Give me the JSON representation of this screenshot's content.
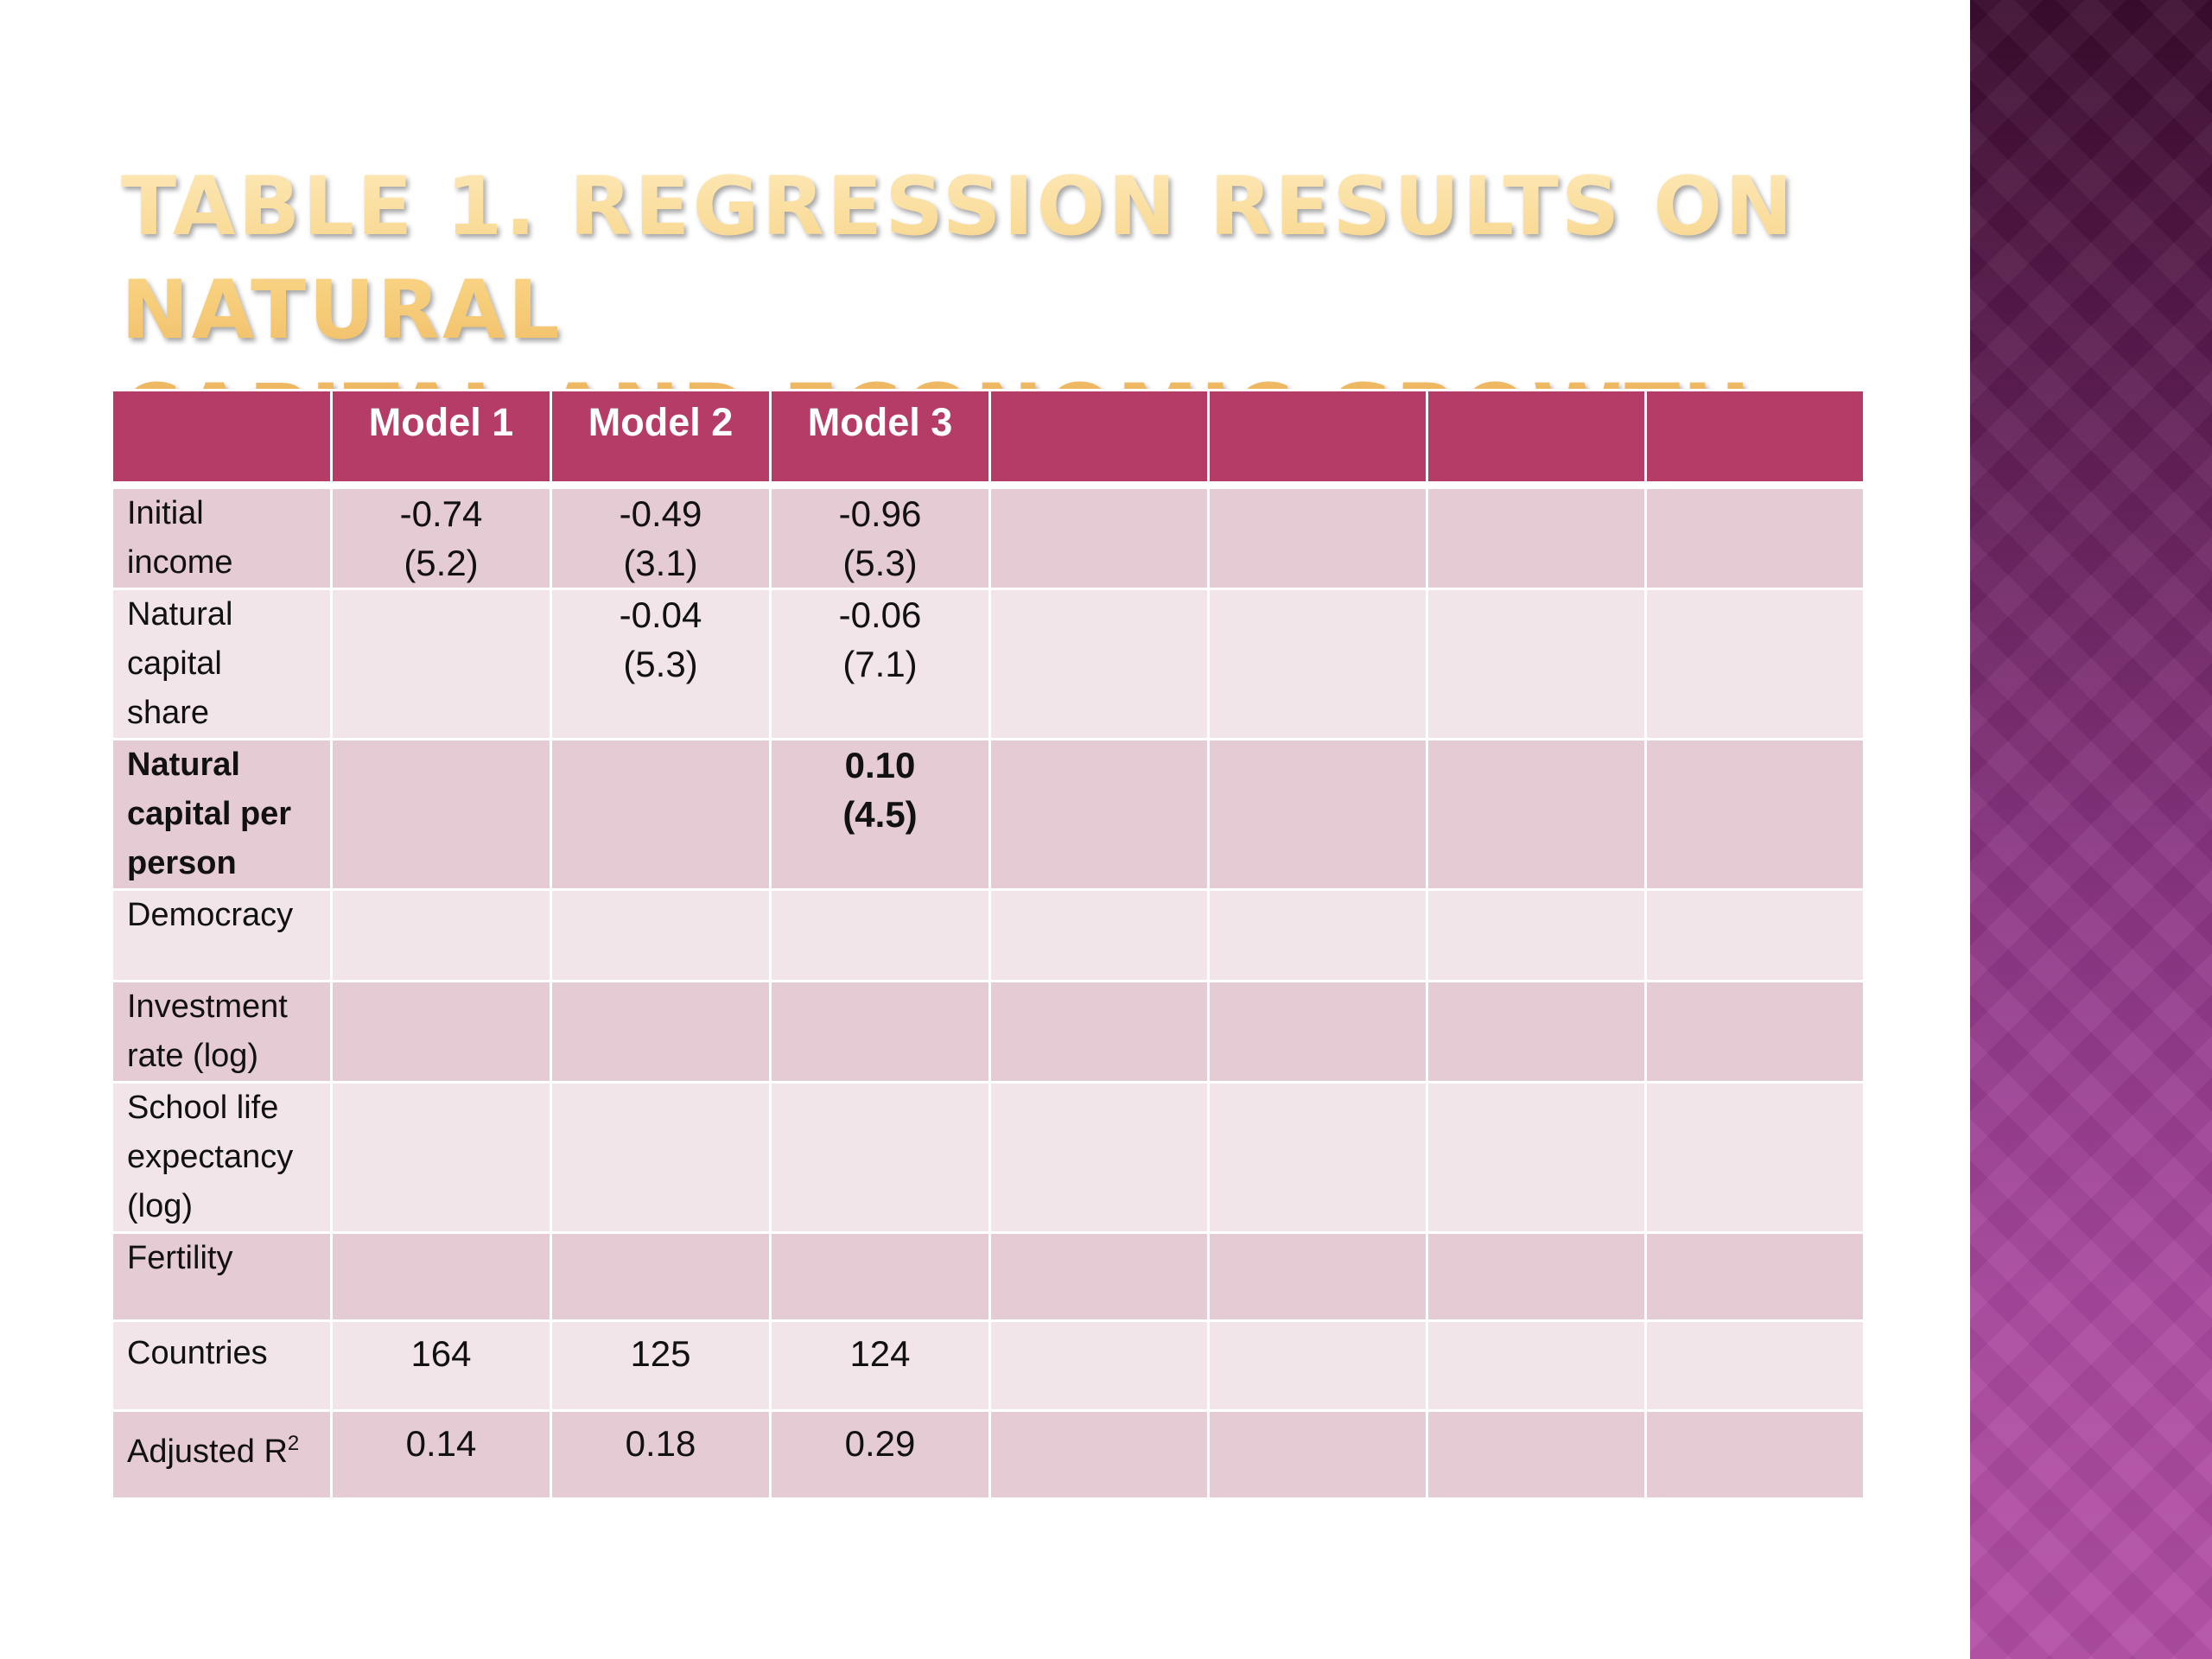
{
  "slide": {
    "title_line1": "Table 1. Regression results on natural",
    "title_line2": "capital and economic growth"
  },
  "table": {
    "headers": [
      "",
      "Model 1",
      "Model 2",
      "Model 3",
      "",
      "",
      "",
      ""
    ],
    "rows": [
      {
        "label": [
          "Initial",
          "income"
        ],
        "m1": [
          "-0.74",
          "(5.2)"
        ],
        "m2": [
          "-0.49",
          "(3.1)"
        ],
        "m3": [
          "-0.96",
          "(5.3)"
        ]
      },
      {
        "label": [
          "Natural",
          "capital",
          "share"
        ],
        "m1": [
          "",
          ""
        ],
        "m2": [
          "-0.04",
          "(5.3)"
        ],
        "m3": [
          "-0.06",
          "(7.1)"
        ]
      },
      {
        "label": [
          "Natural",
          "capital per",
          "person"
        ],
        "m1": [
          "",
          ""
        ],
        "m2": [
          "",
          ""
        ],
        "m3": [
          "0.10",
          "(4.5)"
        ]
      },
      {
        "label": [
          "Democracy"
        ],
        "m1": [
          "",
          ""
        ],
        "m2": [
          "",
          ""
        ],
        "m3": [
          "",
          ""
        ]
      },
      {
        "label": [
          "Investment",
          "rate (log)"
        ],
        "m1": [
          "",
          ""
        ],
        "m2": [
          "",
          ""
        ],
        "m3": [
          "",
          ""
        ]
      },
      {
        "label": [
          "School life",
          "expectancy",
          "(log)"
        ],
        "m1": [
          "",
          ""
        ],
        "m2": [
          "",
          ""
        ],
        "m3": [
          "",
          ""
        ]
      },
      {
        "label": [
          "Fertility"
        ],
        "m1": [
          "",
          ""
        ],
        "m2": [
          "",
          ""
        ],
        "m3": [
          "",
          ""
        ]
      },
      {
        "label": [
          "Countries"
        ],
        "m1": [
          "164"
        ],
        "m2": [
          "125"
        ],
        "m3": [
          "124"
        ]
      },
      {
        "label": [
          "Adjusted R"
        ],
        "label_sup": "2",
        "m1": [
          "0.14"
        ],
        "m2": [
          "0.18"
        ],
        "m3": [
          "0.29"
        ]
      }
    ]
  },
  "colors": {
    "header": "#b53c67",
    "row_dark": "#e5cbd3",
    "row_light": "#f1e5e9",
    "title_gold": "#f2c46e",
    "side_band": "#8a3582"
  }
}
